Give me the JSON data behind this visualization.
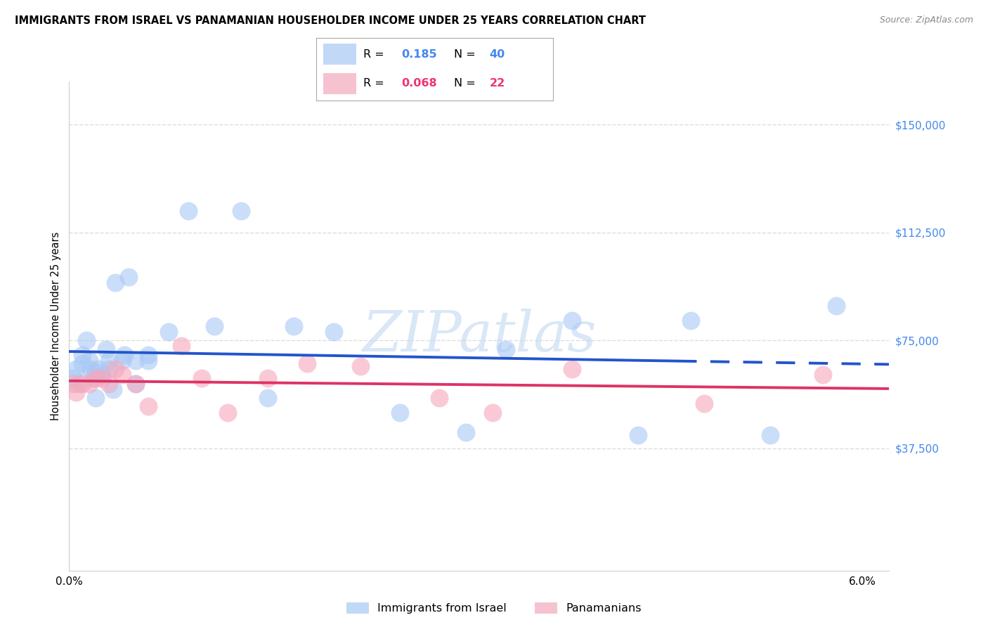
{
  "title": "IMMIGRANTS FROM ISRAEL VS PANAMANIAN HOUSEHOLDER INCOME UNDER 25 YEARS CORRELATION CHART",
  "source": "Source: ZipAtlas.com",
  "ylabel": "Householder Income Under 25 years",
  "xlim": [
    0.0,
    0.062
  ],
  "ylim": [
    -5000,
    165000
  ],
  "ytick_vals": [
    37500,
    75000,
    112500,
    150000
  ],
  "ytick_labels": [
    "$37,500",
    "$75,000",
    "$112,500",
    "$150,000"
  ],
  "xtick_vals": [
    0.0,
    0.06
  ],
  "xtick_labels": [
    "0.0%",
    "6.0%"
  ],
  "israel_R": "0.185",
  "israel_N": "40",
  "panama_R": "0.068",
  "panama_N": "22",
  "israel_x": [
    0.0003,
    0.0005,
    0.0007,
    0.001,
    0.001,
    0.0013,
    0.0015,
    0.0016,
    0.0018,
    0.002,
    0.002,
    0.0022,
    0.0025,
    0.0028,
    0.003,
    0.003,
    0.0033,
    0.0035,
    0.004,
    0.0042,
    0.0045,
    0.005,
    0.005,
    0.006,
    0.006,
    0.0075,
    0.009,
    0.011,
    0.013,
    0.015,
    0.017,
    0.02,
    0.025,
    0.03,
    0.033,
    0.038,
    0.043,
    0.047,
    0.053,
    0.058
  ],
  "israel_y": [
    62000,
    65000,
    60000,
    70000,
    67000,
    75000,
    68000,
    65000,
    62000,
    64000,
    55000,
    65000,
    63000,
    72000,
    68000,
    65000,
    58000,
    95000,
    68000,
    70000,
    97000,
    60000,
    68000,
    70000,
    68000,
    78000,
    120000,
    80000,
    120000,
    55000,
    80000,
    78000,
    50000,
    43000,
    72000,
    82000,
    42000,
    82000,
    42000,
    87000
  ],
  "panama_x": [
    0.0003,
    0.0005,
    0.001,
    0.0015,
    0.002,
    0.0025,
    0.003,
    0.0035,
    0.004,
    0.005,
    0.006,
    0.0085,
    0.01,
    0.012,
    0.015,
    0.018,
    0.022,
    0.028,
    0.032,
    0.038,
    0.048,
    0.057
  ],
  "panama_y": [
    60000,
    57000,
    60000,
    60000,
    62000,
    62000,
    60000,
    65000,
    63000,
    60000,
    52000,
    73000,
    62000,
    50000,
    62000,
    67000,
    66000,
    55000,
    50000,
    65000,
    53000,
    63000
  ],
  "israel_scatter_color": "#a8c8f5",
  "panama_scatter_color": "#f5a8bc",
  "israel_line_color": "#2255cc",
  "panama_line_color": "#dd3366",
  "israel_legend_color": "#a8c8f5",
  "panama_legend_color": "#f5a8bc",
  "israel_text_color": "#4488ee",
  "panama_text_color": "#ee3377",
  "ytick_color": "#4488ee",
  "grid_color": "#dddddd",
  "watermark_color": "#c0d8f0",
  "title_fontsize": 10.5,
  "source_fontsize": 9,
  "ylabel_fontsize": 10.5,
  "tick_fontsize": 11,
  "legend_fontsize": 11.5
}
